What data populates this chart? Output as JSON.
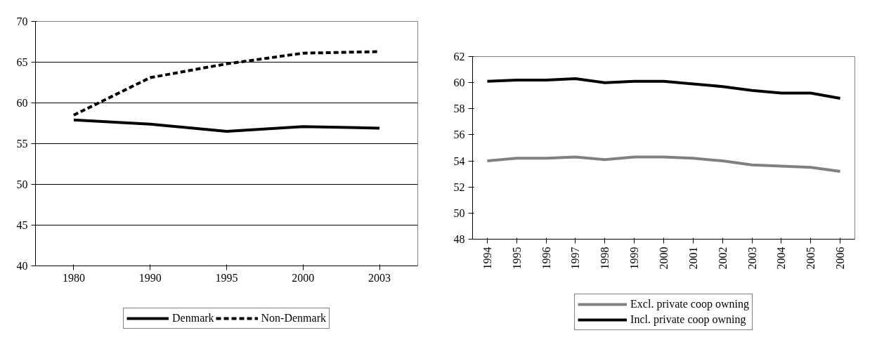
{
  "chart_data": [
    {
      "type": "line",
      "categories": [
        "1980",
        "1990",
        "1995",
        "2000",
        "2003"
      ],
      "ylim": [
        40,
        70
      ],
      "yticks": [
        40,
        45,
        50,
        55,
        60,
        65,
        70
      ],
      "grid": "y",
      "legend": "bottom",
      "marker": "none",
      "series": [
        {
          "name": "Denmark",
          "color": "#000000",
          "line_style": "solid",
          "values": [
            57.9,
            57.4,
            56.5,
            57.1,
            56.9
          ]
        },
        {
          "name": "Non-Denmark",
          "color": "#000000",
          "line_style": "dashed",
          "values": [
            58.5,
            63.1,
            64.8,
            66.1,
            66.3
          ]
        }
      ]
    },
    {
      "type": "line",
      "categories": [
        "1994",
        "1995",
        "1996",
        "1997",
        "1998",
        "1999",
        "2000",
        "2001",
        "2002",
        "2003",
        "2004",
        "2005",
        "2006"
      ],
      "ylim": [
        48,
        62
      ],
      "yticks": [
        48,
        50,
        52,
        54,
        56,
        58,
        60,
        62
      ],
      "grid": false,
      "legend": "bottom",
      "marker": "none",
      "series": [
        {
          "name": "Excl. private coop owning",
          "color": "#808080",
          "line_style": "solid",
          "values": [
            54.0,
            54.2,
            54.2,
            54.3,
            54.1,
            54.3,
            54.3,
            54.2,
            54.0,
            53.7,
            53.6,
            53.5,
            53.2
          ]
        },
        {
          "name": "Incl. private coop owning",
          "color": "#000000",
          "line_style": "solid",
          "values": [
            60.1,
            60.2,
            60.2,
            60.3,
            60.0,
            60.1,
            60.1,
            59.9,
            59.7,
            59.4,
            59.2,
            59.2,
            58.8
          ]
        }
      ]
    }
  ]
}
